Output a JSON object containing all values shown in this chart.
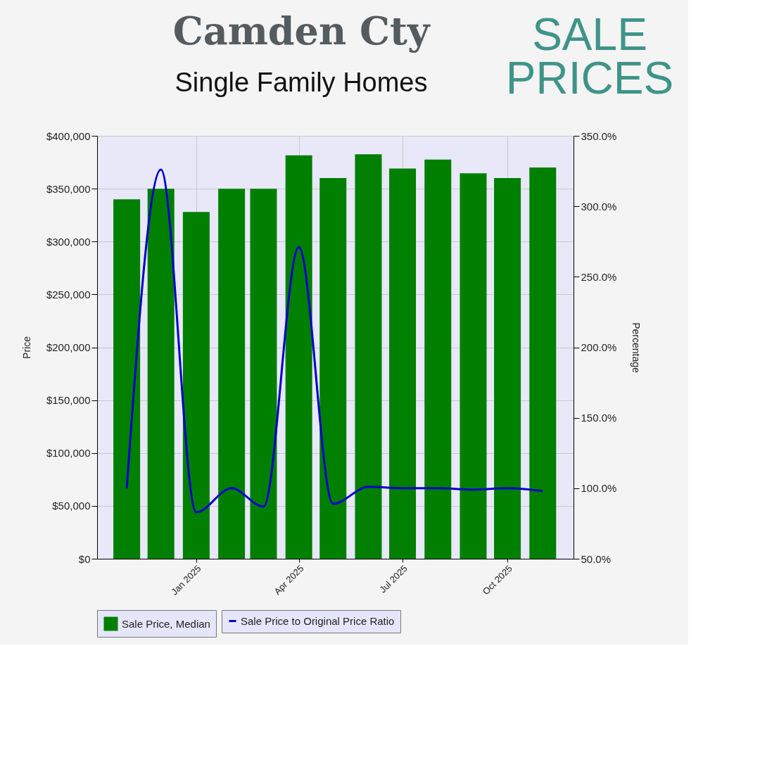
{
  "chart_data": {
    "type": "bar",
    "title": "Camden Cty",
    "subtitle": "Single Family Homes",
    "annotations": [
      "SALE PRICES"
    ],
    "ylabel": "Price",
    "y2label": "Percentage",
    "x": [
      "2024-11-01",
      "2024-12-01",
      "2025-01-01",
      "2025-02-01",
      "2025-03-01",
      "2025-04-01",
      "2025-05-01",
      "2025-06-01",
      "2025-07-01",
      "2025-08-01",
      "2025-09-01",
      "2025-10-01",
      "2025-11-01"
    ],
    "xlim": [
      "2024-10-06",
      "2025-11-28"
    ],
    "xticks": [
      {
        "value": "2025-01-01",
        "label": "Jan 2025"
      },
      {
        "value": "2025-04-01",
        "label": "Apr 2025"
      },
      {
        "value": "2025-07-01",
        "label": "Jul 2025"
      },
      {
        "value": "2025-10-01",
        "label": "Oct 2025"
      }
    ],
    "ylim": [
      0,
      400000
    ],
    "yticks": [
      {
        "value": 0,
        "label": "$0"
      },
      {
        "value": 50000,
        "label": "$50,000"
      },
      {
        "value": 100000,
        "label": "$100,000"
      },
      {
        "value": 150000,
        "label": "$150,000"
      },
      {
        "value": 200000,
        "label": "$200,000"
      },
      {
        "value": 250000,
        "label": "$250,000"
      },
      {
        "value": 300000,
        "label": "$300,000"
      },
      {
        "value": 350000,
        "label": "$350,000"
      },
      {
        "value": 400000,
        "label": "$400,000"
      }
    ],
    "y2lim": [
      50,
      350
    ],
    "y2ticks": [
      {
        "value": 50,
        "label": "50.0%"
      },
      {
        "value": 100,
        "label": "100.0%"
      },
      {
        "value": 150,
        "label": "150.0%"
      },
      {
        "value": 200,
        "label": "200.0%"
      },
      {
        "value": 250,
        "label": "250.0%"
      },
      {
        "value": 300,
        "label": "300.0%"
      },
      {
        "value": 350,
        "label": "350.0%"
      }
    ],
    "series": [
      {
        "name": "Sale Price, Median",
        "type": "bar",
        "color": "#007f00",
        "values": [
          340000,
          350000,
          328000,
          350000,
          350000,
          381500,
          360000,
          382500,
          369000,
          377500,
          364500,
          360000,
          370000
        ]
      },
      {
        "name": "Sale Price to Original Price Ratio",
        "type": "line",
        "axis": "y2",
        "color": "#0000cc",
        "values": [
          100,
          326,
          83,
          100,
          87,
          271,
          89,
          101,
          100,
          100,
          99,
          100,
          98
        ]
      }
    ],
    "grid": true,
    "legend": "bottom",
    "marker": "none",
    "line_style": "solid"
  }
}
